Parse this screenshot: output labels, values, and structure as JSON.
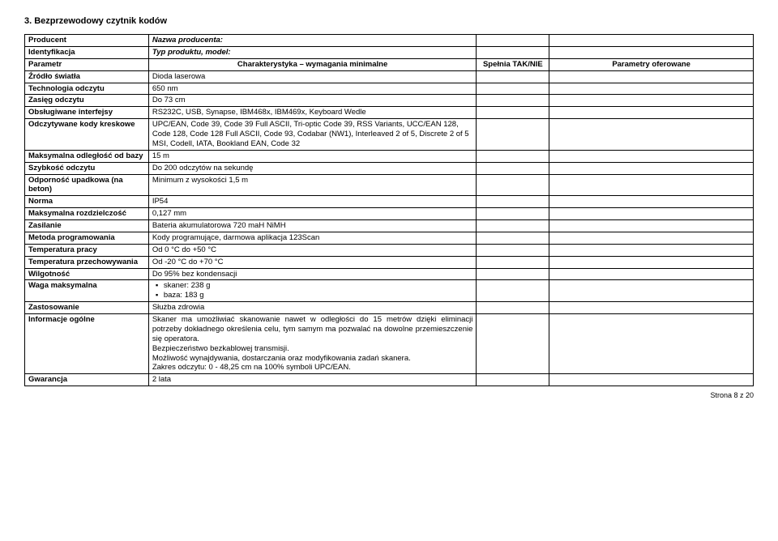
{
  "title": "3.  Bezprzewodowy czytnik kodów",
  "headers": {
    "param": "Parametr",
    "char": "Charakterystyka – wymagania minimalne",
    "tak": "Spełnia TAK/NIE",
    "ofer": "Parametry oferowane"
  },
  "rows": [
    {
      "label": "Producent",
      "value": "Nazwa producenta:",
      "labelBold": true,
      "valueBoldItalic": true
    },
    {
      "label": "Identyfikacja",
      "value": "Typ produktu, model:",
      "labelBold": true,
      "valueBoldItalic": true
    },
    {
      "label": "Źródło światła",
      "value": "Dioda laserowa"
    },
    {
      "label": "Technologia odczytu",
      "value": "650 nm"
    },
    {
      "label": "Zasięg odczytu",
      "value": "Do 73 cm"
    },
    {
      "label": "Obsługiwane interfejsy",
      "value": "RS232C, USB, Synapse, IBM468x, IBM469x, Keyboard Wedle"
    },
    {
      "label": "Odczytywane kody kreskowe",
      "value": "UPC/EAN, Code 39, Code 39 Full ASCII, Tri-optic Code 39, RSS Variants, UCC/EAN 128, Code 128, Code 128 Full ASCII, Code 93, Codabar (NW1), Interleaved 2 of 5, Discrete 2 of 5 MSI, Codell, IATA, Bookland EAN, Code 32"
    },
    {
      "label": "Maksymalna odległość od bazy",
      "value": "15 m"
    },
    {
      "label": "Szybkość odczytu",
      "value": "Do 200 odczytów na sekundę"
    },
    {
      "label": "Odporność upadkowa (na beton)",
      "value": "Minimum z wysokości 1,5 m"
    },
    {
      "label": "Norma",
      "value": "IP54"
    },
    {
      "label": "Maksymalna rozdzielczość",
      "value": "0,127 mm"
    },
    {
      "label": "Zasilanie",
      "value": "Bateria akumulatorowa 720 maH NiMH"
    },
    {
      "label": "Metoda programowania",
      "value": "Kody programujące, darmowa aplikacja 123Scan"
    },
    {
      "label": "Temperatura pracy",
      "value": "Od 0 °C do +50 °C"
    },
    {
      "label": "Temperatura przechowywania",
      "value": "Od -20 °C do +70 °C"
    },
    {
      "label": "Wilgotność",
      "value": "Do 95% bez kondensacji"
    },
    {
      "label": "Waga maksymalna",
      "value_list": [
        "skaner: 238 g",
        "baza: 183 g"
      ]
    },
    {
      "label": "Zastosowanie",
      "value": "Służba zdrowia"
    },
    {
      "label": "Informacje ogólne",
      "value_multi": [
        "Skaner ma umożliwiać skanowanie nawet w odległości do 15 metrów dzięki eliminacji potrzeby dokładnego określenia celu, tym samym ma pozwalać na dowolne przemieszczenie się operatora.",
        "Bezpieczeństwo bezkablowej transmisji.",
        "Możliwość wynajdywania, dostarczania oraz modyfikowania zadań skanera.",
        "Zakres odczytu: 0 - 48,25 cm na 100% symboli UPC/EAN."
      ]
    },
    {
      "label": "Gwarancja",
      "value": "2 lata"
    }
  ],
  "footer": "Strona 8 z 20"
}
